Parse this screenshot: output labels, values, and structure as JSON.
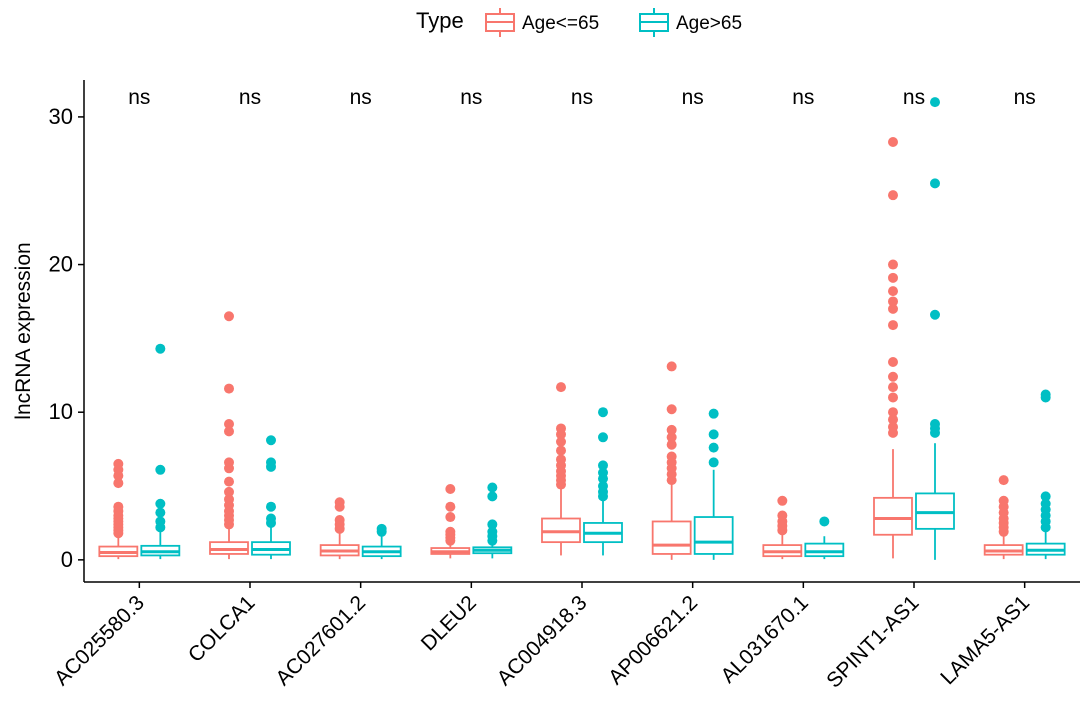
{
  "legend": {
    "title": "Type",
    "entries": [
      {
        "label": "Age<=65",
        "color": "#F8766D"
      },
      {
        "label": "Age>65",
        "color": "#00BFC4"
      }
    ]
  },
  "chart_data": {
    "type": "boxplot",
    "ylabel": "lncRNA expression",
    "xlabel": "",
    "ylim": [
      -1.5,
      32.5
    ],
    "yticks": [
      0,
      10,
      20,
      30
    ],
    "grid": false,
    "legend_position": "top",
    "categories": [
      "AC025580.3",
      "COLCA1",
      "AC027601.2",
      "DLEU2",
      "AC004918.3",
      "AP006621.2",
      "AL031670.1",
      "SPINT1-AS1",
      "LAMA5-AS1"
    ],
    "significance": [
      "ns",
      "ns",
      "ns",
      "ns",
      "ns",
      "ns",
      "ns",
      "ns",
      "ns"
    ],
    "series": [
      {
        "name": "Age<=65",
        "color": "#F8766D",
        "boxes": [
          {
            "min": 0.05,
            "q1": 0.25,
            "median": 0.5,
            "q3": 0.9,
            "max": 1.6,
            "outliers": [
              1.8,
              2.0,
              2.2,
              2.4,
              2.6,
              2.8,
              3.0,
              3.3,
              3.6,
              5.2,
              5.7,
              6.1,
              6.5
            ]
          },
          {
            "min": 0.05,
            "q1": 0.4,
            "median": 0.7,
            "q3": 1.2,
            "max": 2.2,
            "outliers": [
              2.4,
              2.7,
              3.0,
              3.3,
              3.7,
              4.1,
              4.6,
              5.3,
              6.2,
              6.6,
              8.7,
              9.2,
              11.6,
              16.5
            ]
          },
          {
            "min": 0.05,
            "q1": 0.3,
            "median": 0.6,
            "q3": 1.0,
            "max": 1.9,
            "outliers": [
              2.1,
              2.4,
              2.7,
              3.6,
              3.9
            ]
          },
          {
            "min": 0.1,
            "q1": 0.4,
            "median": 0.55,
            "q3": 0.8,
            "max": 1.2,
            "outliers": [
              1.3,
              1.5,
              1.7,
              1.9,
              2.9,
              3.6,
              4.8
            ]
          },
          {
            "min": 0.3,
            "q1": 1.2,
            "median": 1.9,
            "q3": 2.8,
            "max": 4.8,
            "outliers": [
              5.1,
              5.4,
              5.7,
              6.0,
              6.4,
              6.8,
              7.4,
              8.0,
              8.5,
              8.9,
              11.7
            ]
          },
          {
            "min": 0.0,
            "q1": 0.4,
            "median": 1.0,
            "q3": 2.6,
            "max": 5.2,
            "outliers": [
              5.4,
              5.8,
              6.2,
              6.6,
              7.0,
              7.8,
              8.3,
              8.8,
              10.2,
              13.1
            ]
          },
          {
            "min": 0.05,
            "q1": 0.25,
            "median": 0.55,
            "q3": 1.0,
            "max": 1.7,
            "outliers": [
              2.0,
              2.3,
              2.6,
              3.0,
              4.0
            ]
          },
          {
            "min": 0.1,
            "q1": 1.7,
            "median": 2.8,
            "q3": 4.2,
            "max": 7.5,
            "outliers": [
              8.6,
              9.0,
              9.5,
              10.0,
              11.0,
              11.7,
              12.4,
              13.4,
              15.9,
              17.0,
              17.5,
              18.2,
              19.1,
              20.0,
              24.7,
              28.3
            ]
          },
          {
            "min": 0.05,
            "q1": 0.35,
            "median": 0.6,
            "q3": 1.0,
            "max": 1.7,
            "outliers": [
              1.9,
              2.2,
              2.5,
              2.8,
              3.2,
              3.6,
              4.0,
              5.4
            ]
          }
        ]
      },
      {
        "name": "Age>65",
        "color": "#00BFC4",
        "boxes": [
          {
            "min": 0.05,
            "q1": 0.3,
            "median": 0.55,
            "q3": 0.95,
            "max": 1.9,
            "outliers": [
              2.2,
              2.6,
              3.2,
              3.8,
              6.1,
              14.3
            ]
          },
          {
            "min": 0.05,
            "q1": 0.35,
            "median": 0.7,
            "q3": 1.2,
            "max": 2.3,
            "outliers": [
              2.5,
              2.8,
              3.6,
              6.3,
              6.6,
              8.1
            ]
          },
          {
            "min": 0.05,
            "q1": 0.25,
            "median": 0.55,
            "q3": 0.9,
            "max": 1.7,
            "outliers": [
              1.9,
              2.1
            ]
          },
          {
            "min": 0.1,
            "q1": 0.45,
            "median": 0.65,
            "q3": 0.85,
            "max": 1.1,
            "outliers": [
              1.3,
              1.6,
              1.9,
              2.4,
              4.3,
              4.9
            ]
          },
          {
            "min": 0.3,
            "q1": 1.2,
            "median": 1.8,
            "q3": 2.5,
            "max": 4.0,
            "outliers": [
              4.3,
              4.6,
              5.0,
              5.5,
              5.9,
              6.4,
              8.3,
              10.0
            ]
          },
          {
            "min": 0.0,
            "q1": 0.4,
            "median": 1.2,
            "q3": 2.9,
            "max": 6.1,
            "outliers": [
              6.6,
              7.6,
              8.5,
              9.9
            ]
          },
          {
            "min": 0.05,
            "q1": 0.25,
            "median": 0.55,
            "q3": 1.1,
            "max": 1.6,
            "outliers": [
              2.6
            ]
          },
          {
            "min": 0.0,
            "q1": 2.1,
            "median": 3.2,
            "q3": 4.5,
            "max": 7.9,
            "outliers": [
              8.6,
              8.9,
              9.2,
              16.6,
              25.5,
              31.0
            ]
          },
          {
            "min": 0.05,
            "q1": 0.35,
            "median": 0.65,
            "q3": 1.1,
            "max": 2.0,
            "outliers": [
              2.2,
              2.6,
              3.0,
              3.4,
              3.8,
              4.3,
              11.0,
              11.2
            ]
          }
        ]
      }
    ]
  }
}
